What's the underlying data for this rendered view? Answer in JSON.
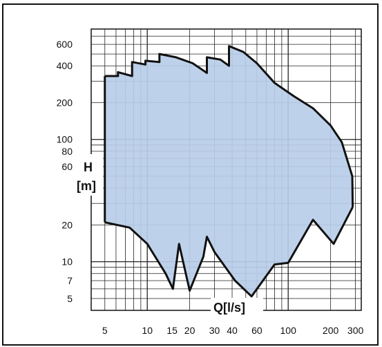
{
  "chart_data": {
    "type": "area",
    "title": "",
    "xlabel": "Q[l/s]",
    "ylabel_line1": "H",
    "ylabel_line2": "[m]",
    "xscale": "log",
    "yscale": "log",
    "xlim": [
      4,
      330
    ],
    "ylim": [
      4,
      800
    ],
    "grid": true,
    "fill_color": "#b8cde9",
    "stroke_color": "#111111",
    "x_ticks": [
      {
        "value": 5,
        "label": "5"
      },
      {
        "value": 10,
        "label": "10"
      },
      {
        "value": 15,
        "label": "15"
      },
      {
        "value": 20,
        "label": "20"
      },
      {
        "value": 30,
        "label": "30"
      },
      {
        "value": 40,
        "label": "40"
      },
      {
        "value": 60,
        "label": "60"
      },
      {
        "value": 100,
        "label": "100"
      },
      {
        "value": 200,
        "label": "200"
      },
      {
        "value": 300,
        "label": "300"
      }
    ],
    "y_ticks": [
      {
        "value": 5,
        "label": "5"
      },
      {
        "value": 7,
        "label": "7"
      },
      {
        "value": 10,
        "label": "10"
      },
      {
        "value": 20,
        "label": "20"
      },
      {
        "value": 60,
        "label": "60"
      },
      {
        "value": 80,
        "label": "80"
      },
      {
        "value": 100,
        "label": "100"
      },
      {
        "value": 200,
        "label": "200"
      },
      {
        "value": 400,
        "label": "400"
      },
      {
        "value": 600,
        "label": "600"
      }
    ],
    "upper_boundary": [
      {
        "x": 5,
        "y": 330
      },
      {
        "x": 6.2,
        "y": 330
      },
      {
        "x": 6.2,
        "y": 355
      },
      {
        "x": 7.8,
        "y": 330
      },
      {
        "x": 7.8,
        "y": 430
      },
      {
        "x": 9.7,
        "y": 410
      },
      {
        "x": 9.7,
        "y": 440
      },
      {
        "x": 12.2,
        "y": 430
      },
      {
        "x": 12.2,
        "y": 500
      },
      {
        "x": 16,
        "y": 470
      },
      {
        "x": 21,
        "y": 420
      },
      {
        "x": 26.5,
        "y": 350
      },
      {
        "x": 26.5,
        "y": 470
      },
      {
        "x": 33,
        "y": 450
      },
      {
        "x": 38,
        "y": 400
      },
      {
        "x": 38,
        "y": 580
      },
      {
        "x": 48,
        "y": 520
      },
      {
        "x": 60,
        "y": 420
      },
      {
        "x": 80,
        "y": 290
      },
      {
        "x": 110,
        "y": 225
      },
      {
        "x": 150,
        "y": 180
      },
      {
        "x": 200,
        "y": 130
      },
      {
        "x": 240,
        "y": 95
      },
      {
        "x": 285,
        "y": 50
      },
      {
        "x": 287,
        "y": 28
      }
    ],
    "lower_boundary": [
      {
        "x": 287,
        "y": 28
      },
      {
        "x": 210,
        "y": 14
      },
      {
        "x": 150,
        "y": 22
      },
      {
        "x": 100,
        "y": 9.8
      },
      {
        "x": 80,
        "y": 9.5
      },
      {
        "x": 55,
        "y": 5.2
      },
      {
        "x": 42,
        "y": 7
      },
      {
        "x": 30,
        "y": 12
      },
      {
        "x": 26.5,
        "y": 16
      },
      {
        "x": 25,
        "y": 11
      },
      {
        "x": 20,
        "y": 5.8
      },
      {
        "x": 16.8,
        "y": 14
      },
      {
        "x": 15.2,
        "y": 6
      },
      {
        "x": 13.5,
        "y": 8
      },
      {
        "x": 10,
        "y": 14
      },
      {
        "x": 7.5,
        "y": 19
      },
      {
        "x": 5,
        "y": 21
      }
    ]
  }
}
